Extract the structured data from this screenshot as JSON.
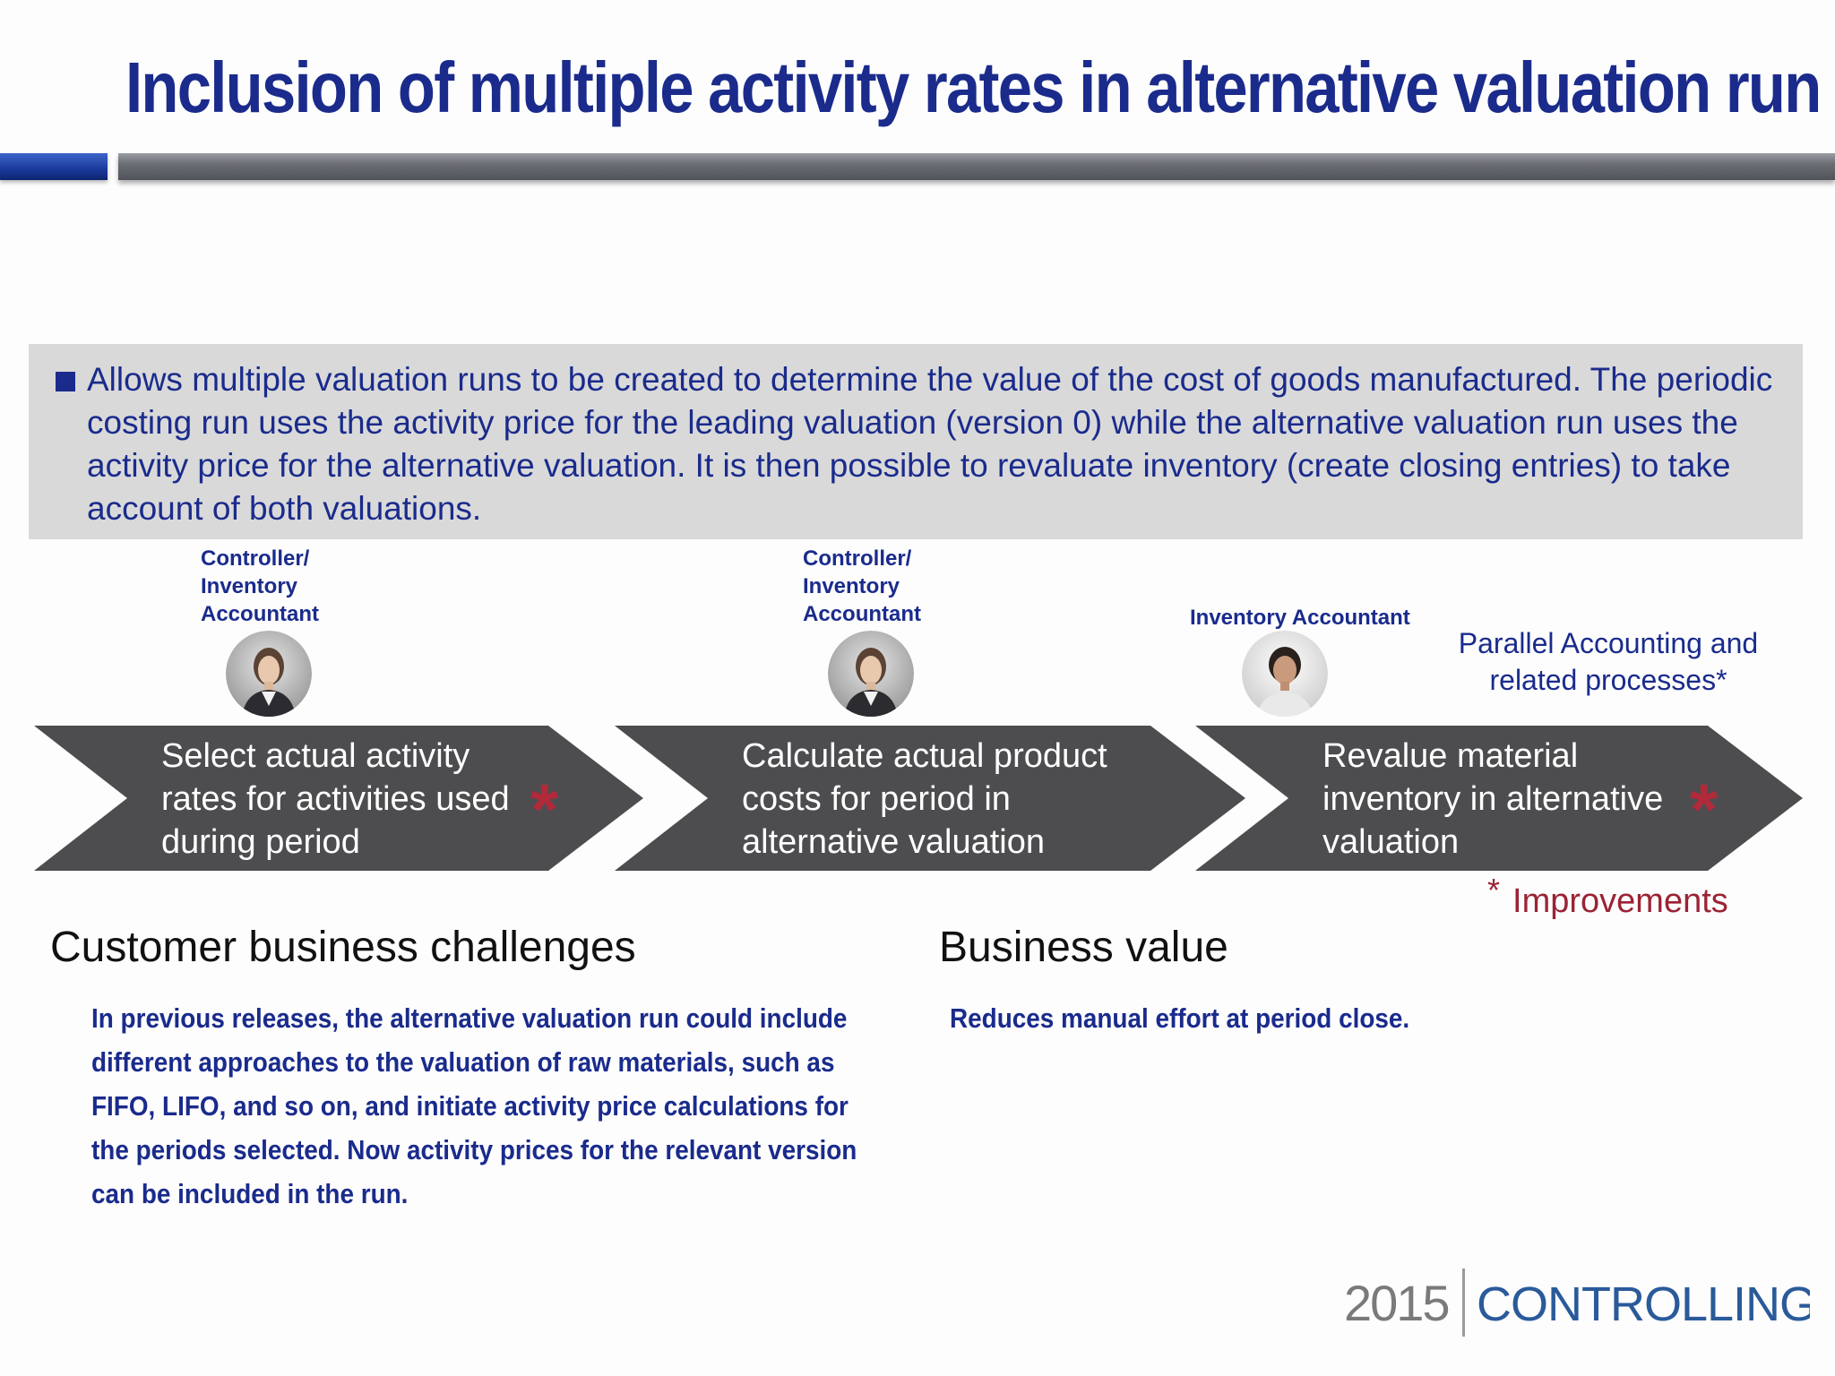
{
  "slide": {
    "title": "Inclusion of multiple activity rates in alternative valuation run"
  },
  "summary": {
    "text": "Allows multiple valuation runs to be created to determine the value of the cost of goods manufactured. The periodic costing run uses the activity price for the leading valuation (version 0) while the alternative valuation run uses the activity price for the alternative valuation. It is then possible to revaluate inventory (create closing entries) to take account of both valuations."
  },
  "roles": [
    {
      "line1": "Controller/",
      "line2": "Inventory",
      "line3": "Accountant"
    },
    {
      "line1": "Controller/",
      "line2": "Inventory",
      "line3": "Accountant"
    },
    {
      "line1": "Inventory Accountant"
    }
  ],
  "process": {
    "steps": [
      {
        "line1": "Select actual activity",
        "line2": "rates for activities used",
        "line3": "during period",
        "improved": true
      },
      {
        "line1": "Calculate actual product",
        "line2": "costs for period in",
        "line3": "alternative valuation",
        "improved": false
      },
      {
        "line1": "Revalue material",
        "line2": "inventory in alternative",
        "line3": "valuation",
        "improved": true
      }
    ],
    "improvement_marker": "*",
    "parallel_note_line1": "Parallel Accounting and",
    "parallel_note_line2": "related processes*",
    "improvements_label": "Improvements",
    "chevron_color": "#4d4d50",
    "star_color": "#b02a3a"
  },
  "challenges": {
    "heading": "Customer business challenges",
    "body": "In previous releases, the alternative valuation run could include different approaches to the valuation of raw materials, such as FIFO, LIFO, and so on, and initiate activity price calculations for the periods selected. Now activity prices for the relevant version can be included in the run."
  },
  "value": {
    "heading": "Business value",
    "body": "Reduces manual effort at period close."
  },
  "footer": {
    "year": "2015",
    "topic": "CONTROLLING"
  },
  "colors": {
    "title_blue": "#1a2b8c",
    "summary_bg": "#d9d9d9",
    "improvement_red": "#9b2335",
    "logo_gray": "#7a7a7a",
    "logo_blue": "#2a5a9a"
  }
}
